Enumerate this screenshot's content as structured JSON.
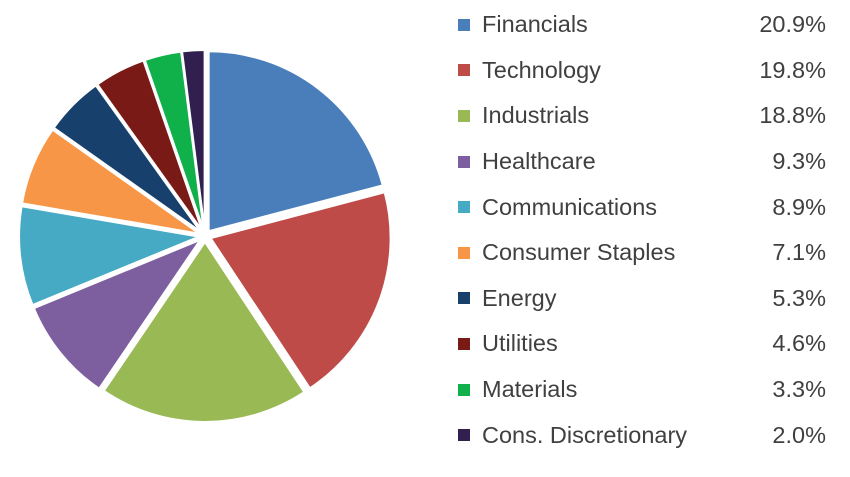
{
  "chart_data": {
    "type": "pie",
    "title": "",
    "legend_position": "right",
    "slices": [
      {
        "label": "Financials",
        "value": 20.9,
        "value_label": "20.9%",
        "color": "#4A7EBB"
      },
      {
        "label": "Technology",
        "value": 19.8,
        "value_label": "19.8%",
        "color": "#BE4B48"
      },
      {
        "label": "Industrials",
        "value": 18.8,
        "value_label": "18.8%",
        "color": "#98B954"
      },
      {
        "label": "Healthcare",
        "value": 9.3,
        "value_label": "9.3%",
        "color": "#7D5FA0"
      },
      {
        "label": "Communications",
        "value": 8.9,
        "value_label": "8.9%",
        "color": "#46AAC5"
      },
      {
        "label": "Consumer Staples",
        "value": 7.1,
        "value_label": "7.1%",
        "color": "#F79646"
      },
      {
        "label": "Energy",
        "value": 5.3,
        "value_label": "5.3%",
        "color": "#17406D"
      },
      {
        "label": "Utilities",
        "value": 4.6,
        "value_label": "4.6%",
        "color": "#7A1A16"
      },
      {
        "label": "Materials",
        "value": 3.3,
        "value_label": "3.3%",
        "color": "#10B04A"
      },
      {
        "label": "Cons. Discretionary",
        "value": 2.0,
        "value_label": "2.0%",
        "color": "#31204F"
      }
    ]
  }
}
